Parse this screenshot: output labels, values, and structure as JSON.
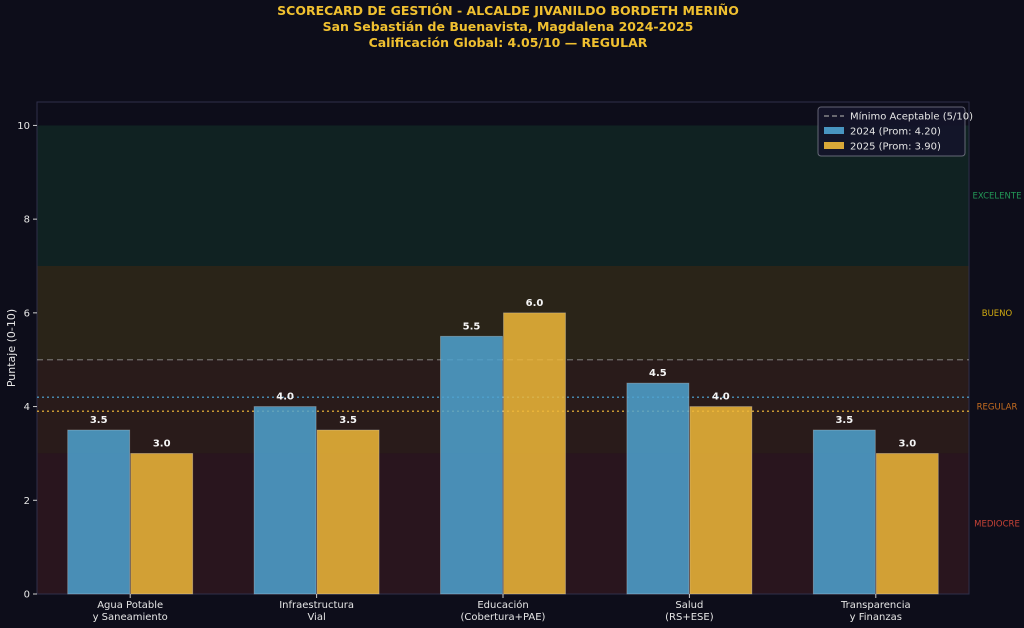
{
  "chart_data": {
    "type": "bar",
    "title": [
      "SCORECARD DE GESTIÓN - ALCALDE JIVANILDO BORDETH MERIÑO",
      "San Sebastián de Buenavista, Magdalena 2024-2025",
      "Calificación Global: 4.05/10 — REGULAR"
    ],
    "ylabel": "Puntaje (0-10)",
    "xlabel": "",
    "ylim": [
      0,
      10.5
    ],
    "yticks": [
      "0",
      "2",
      "4",
      "6",
      "8",
      "10"
    ],
    "categories": [
      [
        "Agua Potable",
        "y Saneamiento"
      ],
      [
        "Infraestructura",
        "Vial"
      ],
      [
        "Educación",
        "(Cobertura+PAE)"
      ],
      [
        "Salud",
        "(RS+ESE)"
      ],
      [
        "Transparencia",
        "y Finanzas"
      ]
    ],
    "series": [
      {
        "name": "2024 (Prom: 4.20)",
        "values": [
          3.5,
          4.0,
          5.5,
          4.5,
          3.5
        ],
        "labels": [
          "3.5",
          "4.0",
          "5.5",
          "4.5",
          "3.5"
        ],
        "color": "#4fa3d1",
        "average": 4.2
      },
      {
        "name": "2025 (Prom: 3.90)",
        "values": [
          3.0,
          3.5,
          6.0,
          4.0,
          3.0
        ],
        "labels": [
          "3.0",
          "3.5",
          "6.0",
          "4.0",
          "3.0"
        ],
        "color": "#f0b83a",
        "average": 3.9
      }
    ],
    "reference_line": {
      "name": "Mínimo Aceptable (5/10)",
      "value": 5
    },
    "zones": [
      {
        "label": "MEDIOCRE",
        "from": 0,
        "to": 3,
        "color": "#e74c3c"
      },
      {
        "label": "REGULAR",
        "from": 3,
        "to": 5,
        "color": "#e67e22"
      },
      {
        "label": "BUENO",
        "from": 5,
        "to": 7,
        "color": "#f1c40f"
      },
      {
        "label": "EXCELENTE",
        "from": 7,
        "to": 10,
        "color": "#27ae60"
      }
    ],
    "legend_position": "top-right",
    "grid": false
  }
}
